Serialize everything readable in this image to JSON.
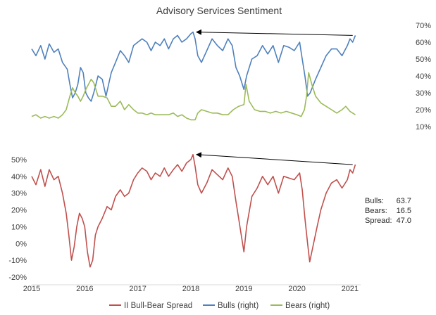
{
  "chart_data": [
    {
      "type": "line",
      "title": "Advisory Services Sentiment",
      "panel": "top",
      "y_axis_side": "right",
      "ylim": [
        10,
        70
      ],
      "yticks": [
        10,
        20,
        30,
        40,
        50,
        60,
        70
      ],
      "ytick_format": "percent",
      "series": [
        {
          "name": "Bulls (right)",
          "color": "#4F81BD",
          "points": [
            [
              2015.0,
              56
            ],
            [
              2015.08,
              52
            ],
            [
              2015.17,
              58
            ],
            [
              2015.25,
              50
            ],
            [
              2015.33,
              59
            ],
            [
              2015.42,
              54
            ],
            [
              2015.5,
              56
            ],
            [
              2015.58,
              48
            ],
            [
              2015.67,
              44
            ],
            [
              2015.72,
              35
            ],
            [
              2015.77,
              27
            ],
            [
              2015.82,
              30
            ],
            [
              2015.87,
              35
            ],
            [
              2015.92,
              45
            ],
            [
              2015.97,
              42
            ],
            [
              2016.02,
              30
            ],
            [
              2016.07,
              27
            ],
            [
              2016.12,
              25
            ],
            [
              2016.17,
              30
            ],
            [
              2016.25,
              40
            ],
            [
              2016.33,
              38
            ],
            [
              2016.4,
              28
            ],
            [
              2016.45,
              35
            ],
            [
              2016.5,
              42
            ],
            [
              2016.58,
              48
            ],
            [
              2016.67,
              55
            ],
            [
              2016.75,
              52
            ],
            [
              2016.83,
              48
            ],
            [
              2016.92,
              58
            ],
            [
              2017.0,
              60
            ],
            [
              2017.08,
              62
            ],
            [
              2017.17,
              60
            ],
            [
              2017.25,
              55
            ],
            [
              2017.33,
              60
            ],
            [
              2017.42,
              58
            ],
            [
              2017.5,
              62
            ],
            [
              2017.58,
              56
            ],
            [
              2017.67,
              62
            ],
            [
              2017.75,
              64
            ],
            [
              2017.83,
              60
            ],
            [
              2017.92,
              62
            ],
            [
              2018.0,
              65
            ],
            [
              2018.04,
              66
            ],
            [
              2018.08,
              62
            ],
            [
              2018.13,
              52
            ],
            [
              2018.2,
              48
            ],
            [
              2018.3,
              55
            ],
            [
              2018.4,
              62
            ],
            [
              2018.5,
              58
            ],
            [
              2018.6,
              55
            ],
            [
              2018.7,
              62
            ],
            [
              2018.78,
              58
            ],
            [
              2018.85,
              45
            ],
            [
              2018.92,
              40
            ],
            [
              2019.0,
              32
            ],
            [
              2019.05,
              40
            ],
            [
              2019.15,
              50
            ],
            [
              2019.25,
              52
            ],
            [
              2019.35,
              58
            ],
            [
              2019.45,
              53
            ],
            [
              2019.55,
              58
            ],
            [
              2019.65,
              48
            ],
            [
              2019.75,
              58
            ],
            [
              2019.85,
              57
            ],
            [
              2019.95,
              55
            ],
            [
              2020.05,
              60
            ],
            [
              2020.1,
              50
            ],
            [
              2020.15,
              40
            ],
            [
              2020.2,
              28
            ],
            [
              2020.25,
              30
            ],
            [
              2020.35,
              38
            ],
            [
              2020.45,
              45
            ],
            [
              2020.55,
              52
            ],
            [
              2020.65,
              56
            ],
            [
              2020.75,
              56
            ],
            [
              2020.85,
              52
            ],
            [
              2020.95,
              58
            ],
            [
              2021.0,
              62
            ],
            [
              2021.05,
              60
            ],
            [
              2021.1,
              64
            ]
          ]
        },
        {
          "name": "Bears (right)",
          "color": "#9BBB59",
          "points": [
            [
              2015.0,
              16
            ],
            [
              2015.08,
              17
            ],
            [
              2015.17,
              15
            ],
            [
              2015.25,
              16
            ],
            [
              2015.33,
              15
            ],
            [
              2015.42,
              16
            ],
            [
              2015.5,
              15
            ],
            [
              2015.58,
              17
            ],
            [
              2015.65,
              20
            ],
            [
              2015.72,
              28
            ],
            [
              2015.77,
              33
            ],
            [
              2015.82,
              30
            ],
            [
              2015.87,
              28
            ],
            [
              2015.92,
              25
            ],
            [
              2015.97,
              28
            ],
            [
              2016.02,
              32
            ],
            [
              2016.07,
              35
            ],
            [
              2016.12,
              38
            ],
            [
              2016.17,
              36
            ],
            [
              2016.25,
              28
            ],
            [
              2016.33,
              28
            ],
            [
              2016.42,
              27
            ],
            [
              2016.5,
              22
            ],
            [
              2016.58,
              22
            ],
            [
              2016.67,
              25
            ],
            [
              2016.75,
              20
            ],
            [
              2016.83,
              23
            ],
            [
              2016.92,
              20
            ],
            [
              2017.0,
              18
            ],
            [
              2017.08,
              18
            ],
            [
              2017.17,
              17
            ],
            [
              2017.25,
              18
            ],
            [
              2017.33,
              17
            ],
            [
              2017.42,
              17
            ],
            [
              2017.5,
              17
            ],
            [
              2017.58,
              17
            ],
            [
              2017.67,
              18
            ],
            [
              2017.75,
              16
            ],
            [
              2017.83,
              17
            ],
            [
              2017.92,
              15
            ],
            [
              2018.0,
              14
            ],
            [
              2018.08,
              14
            ],
            [
              2018.13,
              18
            ],
            [
              2018.2,
              20
            ],
            [
              2018.3,
              19
            ],
            [
              2018.4,
              18
            ],
            [
              2018.5,
              18
            ],
            [
              2018.6,
              17
            ],
            [
              2018.7,
              17
            ],
            [
              2018.8,
              20
            ],
            [
              2018.9,
              22
            ],
            [
              2019.0,
              23
            ],
            [
              2019.04,
              35
            ],
            [
              2019.1,
              25
            ],
            [
              2019.2,
              20
            ],
            [
              2019.3,
              19
            ],
            [
              2019.4,
              19
            ],
            [
              2019.5,
              18
            ],
            [
              2019.6,
              19
            ],
            [
              2019.7,
              18
            ],
            [
              2019.8,
              19
            ],
            [
              2019.9,
              18
            ],
            [
              2020.0,
              17
            ],
            [
              2020.08,
              16
            ],
            [
              2020.14,
              20
            ],
            [
              2020.18,
              28
            ],
            [
              2020.22,
              42
            ],
            [
              2020.28,
              35
            ],
            [
              2020.35,
              28
            ],
            [
              2020.45,
              24
            ],
            [
              2020.55,
              22
            ],
            [
              2020.65,
              20
            ],
            [
              2020.75,
              18
            ],
            [
              2020.85,
              20
            ],
            [
              2020.92,
              22
            ],
            [
              2021.0,
              19
            ],
            [
              2021.05,
              18
            ],
            [
              2021.1,
              17
            ]
          ]
        }
      ],
      "annotations": [
        {
          "type": "arrow",
          "from": [
            2021.05,
            64
          ],
          "to": [
            2018.04,
            66
          ]
        }
      ]
    },
    {
      "type": "line",
      "panel": "bottom",
      "y_axis_side": "left",
      "ylim": [
        -20,
        55
      ],
      "yticks": [
        -20,
        -10,
        0,
        10,
        20,
        30,
        40,
        50
      ],
      "ytick_format": "percent",
      "xlim": [
        2015,
        2021.2
      ],
      "xticks": [
        "2015",
        "2016",
        "2017",
        "2018",
        "2019",
        "2020",
        "2021"
      ],
      "series": [
        {
          "name": "II Bull-Bear Spread",
          "color": "#C0504D",
          "points": [
            [
              2015.0,
              40
            ],
            [
              2015.08,
              35
            ],
            [
              2015.17,
              44
            ],
            [
              2015.25,
              34
            ],
            [
              2015.33,
              44
            ],
            [
              2015.42,
              38
            ],
            [
              2015.5,
              40
            ],
            [
              2015.58,
              30
            ],
            [
              2015.65,
              18
            ],
            [
              2015.7,
              5
            ],
            [
              2015.75,
              -10
            ],
            [
              2015.8,
              -2
            ],
            [
              2015.85,
              10
            ],
            [
              2015.9,
              18
            ],
            [
              2015.95,
              15
            ],
            [
              2016.0,
              10
            ],
            [
              2016.05,
              -5
            ],
            [
              2016.1,
              -14
            ],
            [
              2016.15,
              -10
            ],
            [
              2016.2,
              5
            ],
            [
              2016.25,
              10
            ],
            [
              2016.33,
              15
            ],
            [
              2016.42,
              22
            ],
            [
              2016.5,
              20
            ],
            [
              2016.58,
              28
            ],
            [
              2016.67,
              32
            ],
            [
              2016.75,
              28
            ],
            [
              2016.83,
              30
            ],
            [
              2016.92,
              38
            ],
            [
              2017.0,
              42
            ],
            [
              2017.08,
              45
            ],
            [
              2017.17,
              43
            ],
            [
              2017.25,
              38
            ],
            [
              2017.33,
              42
            ],
            [
              2017.42,
              40
            ],
            [
              2017.5,
              45
            ],
            [
              2017.58,
              40
            ],
            [
              2017.67,
              44
            ],
            [
              2017.75,
              47
            ],
            [
              2017.83,
              43
            ],
            [
              2017.92,
              48
            ],
            [
              2018.0,
              50
            ],
            [
              2018.04,
              53
            ],
            [
              2018.08,
              46
            ],
            [
              2018.13,
              35
            ],
            [
              2018.2,
              30
            ],
            [
              2018.3,
              36
            ],
            [
              2018.4,
              44
            ],
            [
              2018.5,
              41
            ],
            [
              2018.6,
              38
            ],
            [
              2018.7,
              45
            ],
            [
              2018.78,
              40
            ],
            [
              2018.85,
              25
            ],
            [
              2018.9,
              15
            ],
            [
              2018.95,
              5
            ],
            [
              2019.0,
              -5
            ],
            [
              2019.05,
              10
            ],
            [
              2019.15,
              28
            ],
            [
              2019.25,
              33
            ],
            [
              2019.35,
              40
            ],
            [
              2019.45,
              35
            ],
            [
              2019.55,
              40
            ],
            [
              2019.65,
              30
            ],
            [
              2019.75,
              40
            ],
            [
              2019.85,
              39
            ],
            [
              2019.95,
              38
            ],
            [
              2020.05,
              42
            ],
            [
              2020.1,
              32
            ],
            [
              2020.15,
              15
            ],
            [
              2020.2,
              0
            ],
            [
              2020.24,
              -11
            ],
            [
              2020.3,
              -2
            ],
            [
              2020.38,
              10
            ],
            [
              2020.45,
              20
            ],
            [
              2020.55,
              30
            ],
            [
              2020.65,
              36
            ],
            [
              2020.75,
              38
            ],
            [
              2020.85,
              33
            ],
            [
              2020.95,
              38
            ],
            [
              2021.0,
              44
            ],
            [
              2021.05,
              42
            ],
            [
              2021.1,
              47
            ]
          ]
        }
      ],
      "annotations": [
        {
          "type": "arrow",
          "from": [
            2021.05,
            47
          ],
          "to": [
            2018.04,
            53
          ]
        }
      ]
    }
  ],
  "stats": {
    "bulls_label": "Bulls:",
    "bulls_value": "63.7",
    "bears_label": "Bears:",
    "bears_value": "16.5",
    "spread_label": "Spread:",
    "spread_value": "47.0"
  },
  "legend": {
    "items": [
      {
        "label": "II Bull-Bear Spread",
        "color": "#C0504D"
      },
      {
        "label": "Bulls (right)",
        "color": "#4F81BD"
      },
      {
        "label": "Bears (right)",
        "color": "#9BBB59"
      }
    ]
  }
}
